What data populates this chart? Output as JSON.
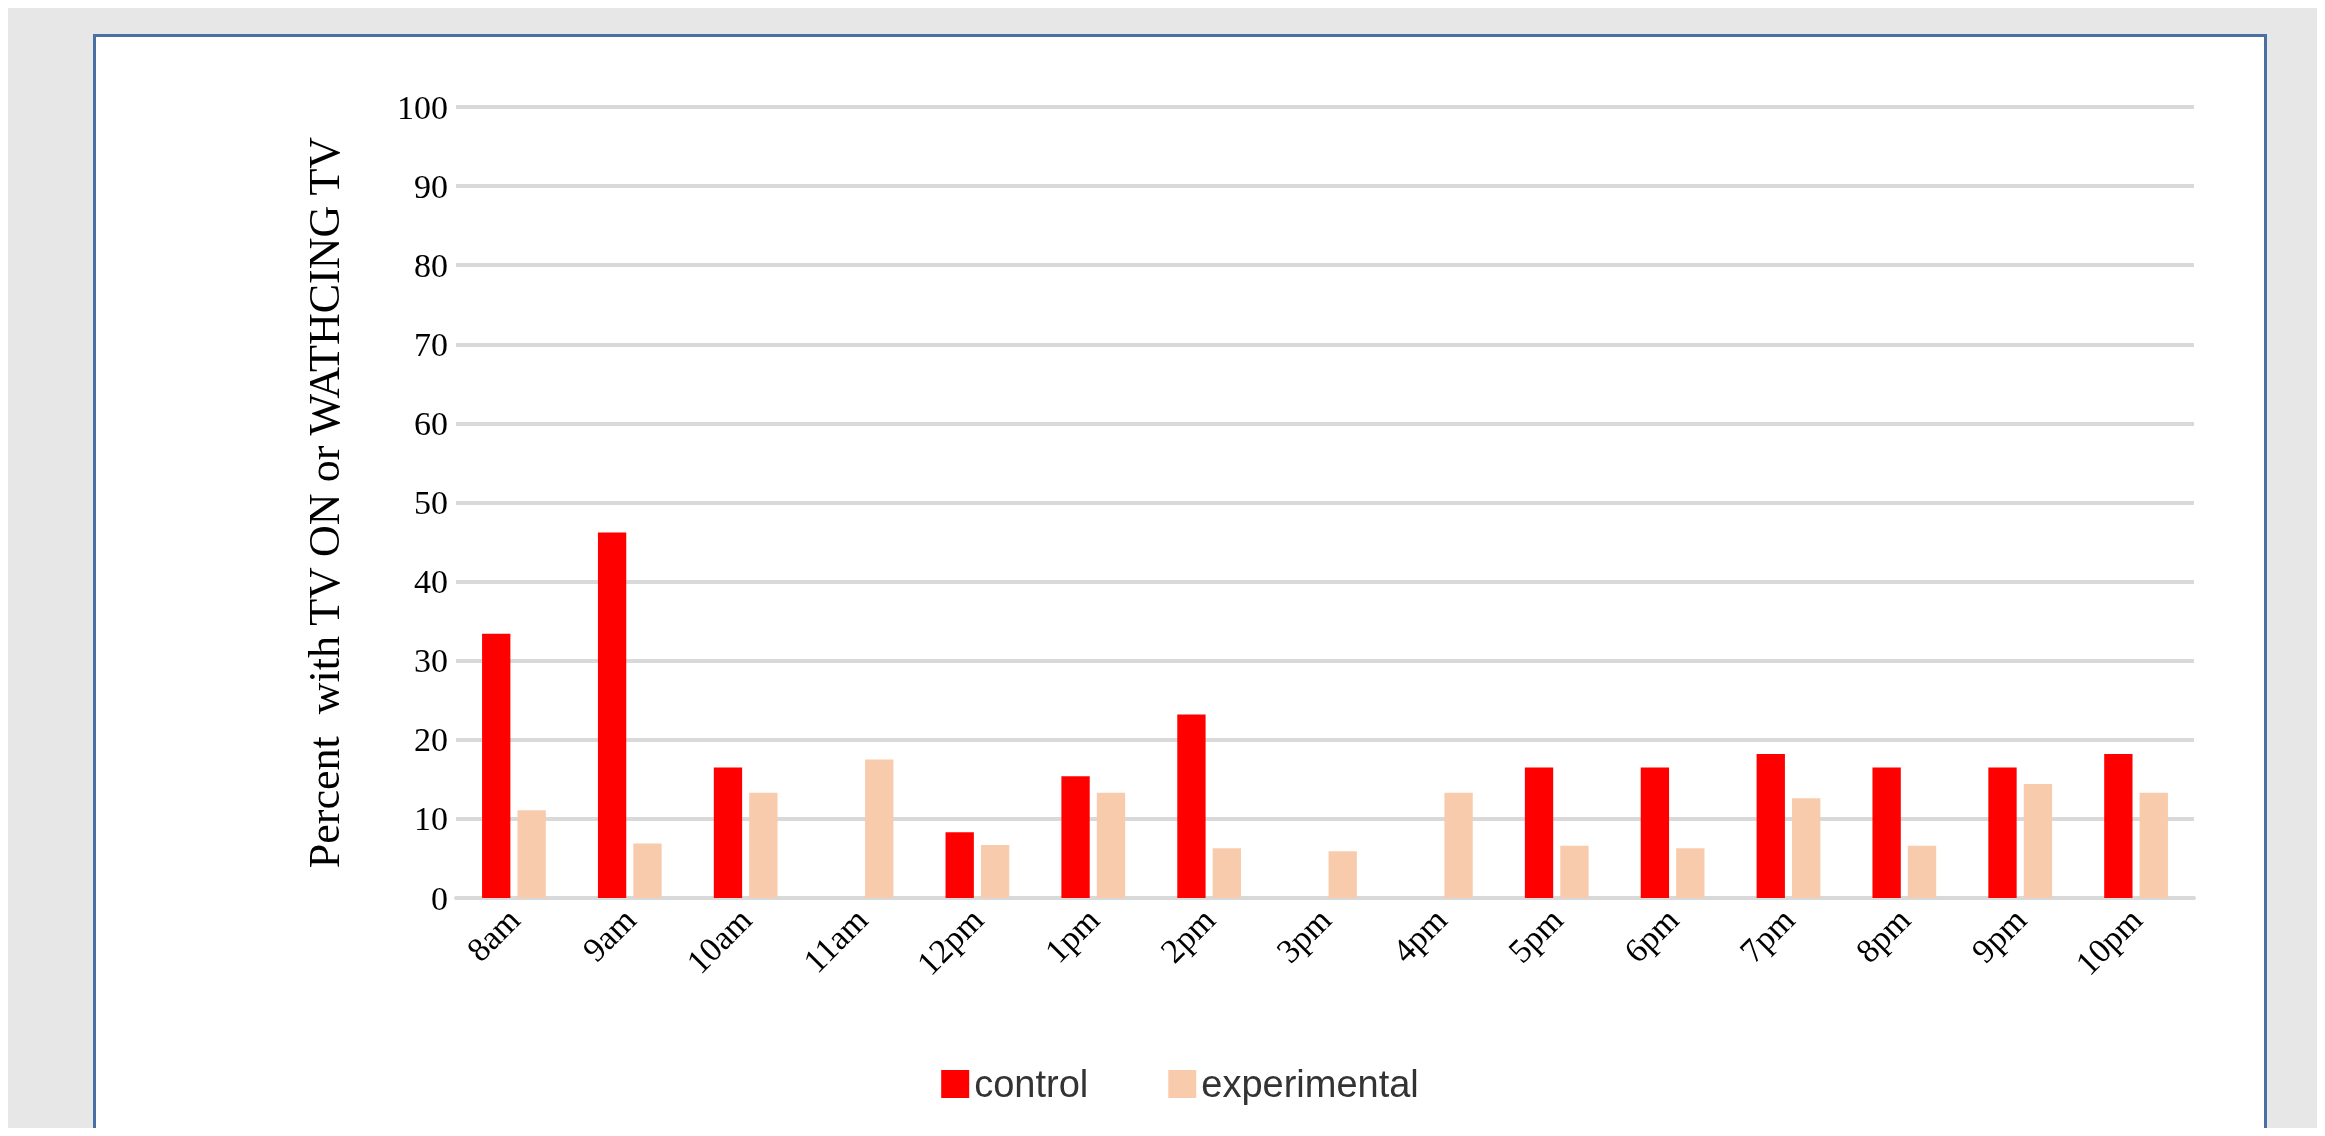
{
  "chart_data": {
    "type": "bar",
    "ylabel": "Percent  with TV ON or WATHCING TV",
    "categories": [
      "8am",
      "9am",
      "10am",
      "11am",
      "12pm",
      "1pm",
      "2pm",
      "3pm",
      "4pm",
      "5pm",
      "6pm",
      "7pm",
      "8pm",
      "9pm",
      "10pm"
    ],
    "series": [
      {
        "name": "control",
        "color": "#ff0000",
        "values": [
          33.4,
          46.2,
          16.5,
          0,
          8.3,
          15.4,
          23.2,
          0,
          0,
          16.5,
          16.5,
          18.2,
          16.5,
          16.5,
          18.2
        ]
      },
      {
        "name": "experimental",
        "color": "#f8cbad",
        "values": [
          11.1,
          6.9,
          13.3,
          17.5,
          6.7,
          13.3,
          6.3,
          5.9,
          13.3,
          6.6,
          6.3,
          12.6,
          6.6,
          14.4,
          13.3
        ]
      }
    ],
    "ylim": [
      0,
      100
    ],
    "yticks": [
      0,
      10,
      20,
      30,
      40,
      50,
      60,
      70,
      80,
      90,
      100
    ],
    "grid": "y",
    "legend": "bottom"
  }
}
